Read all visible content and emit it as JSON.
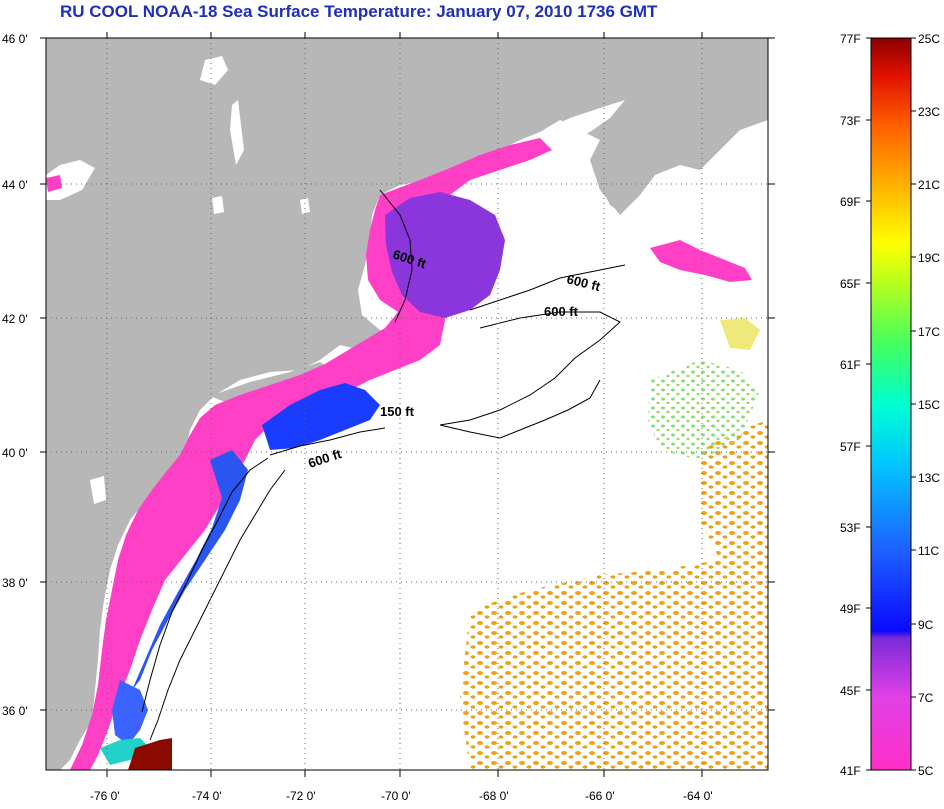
{
  "title": "RU COOL  NOAA-18  Sea Surface Temperature:  January 07, 2010 1736 GMT",
  "colors": {
    "land": "#b7b7b7",
    "lakes": "#ffffff",
    "title": "#1f2fb8",
    "ocean_nodata": "#ffffff"
  },
  "map": {
    "lon_labels": [
      "-76 0'",
      "-74 0'",
      "-72 0'",
      "-70 0'",
      "-68 0'",
      "-66 0'",
      "-64 0'"
    ],
    "lat_labels": [
      "46 0'",
      "44 0'",
      "42 0'",
      "40 0'",
      "38 0'",
      "36 0'"
    ],
    "contour_labels": [
      "600 ft",
      "600 ft",
      "600 ft",
      "150 ft",
      "600 ft"
    ]
  },
  "colorbar": {
    "fahrenheit_labels": [
      "77F",
      "73F",
      "69F",
      "65F",
      "61F",
      "57F",
      "53F",
      "49F",
      "45F",
      "41F"
    ],
    "celsius_labels": [
      "25C",
      "23C",
      "21C",
      "19C",
      "17C",
      "15C",
      "13C",
      "11C",
      "9C",
      "7C",
      "5C"
    ]
  }
}
